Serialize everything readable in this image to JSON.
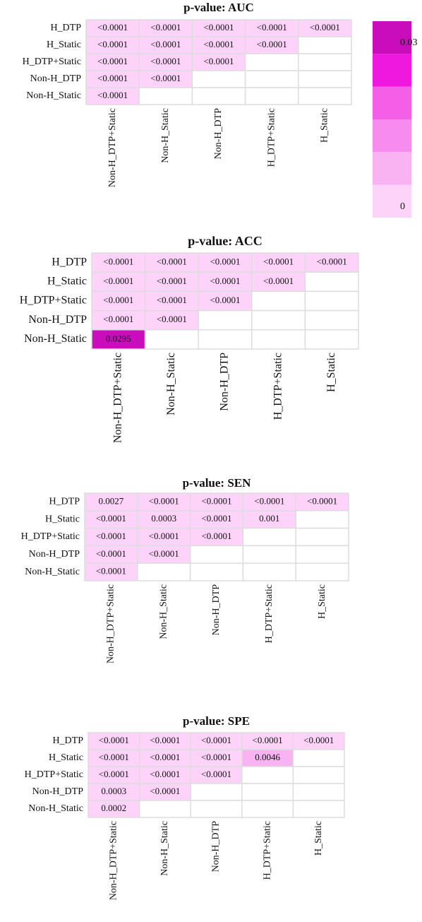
{
  "chart_data": [
    {
      "type": "heatmap",
      "title": "p-value: AUC",
      "rows": [
        "H_DTP",
        "H_Static",
        "H_DTP+Static",
        "Non-H_DTP",
        "Non-H_Static"
      ],
      "columns": [
        "Non-H_DTP+Static",
        "Non-H_Static",
        "Non-H_DTP",
        "H_DTP+Static",
        "H_Static"
      ],
      "values": [
        [
          0.0001,
          0.0001,
          0.0001,
          0.0001,
          0.0001
        ],
        [
          0.0001,
          0.0001,
          0.0001,
          0.0001,
          null
        ],
        [
          0.0001,
          0.0001,
          0.0001,
          null,
          null
        ],
        [
          0.0001,
          0.0001,
          null,
          null,
          null
        ],
        [
          0.0001,
          null,
          null,
          null,
          null
        ]
      ],
      "value_labels": [
        [
          "<0.0001",
          "<0.0001",
          "<0.0001",
          "<0.0001",
          "<0.0001"
        ],
        [
          "<0.0001",
          "<0.0001",
          "<0.0001",
          "<0.0001",
          null
        ],
        [
          "<0.0001",
          "<0.0001",
          "<0.0001",
          null,
          null
        ],
        [
          "<0.0001",
          "<0.0001",
          null,
          null,
          null
        ],
        [
          "<0.0001",
          null,
          null,
          null,
          null
        ]
      ],
      "colorbar": {
        "ylim": [
          -0.002,
          0.034
        ],
        "yticks": [
          0,
          0.03
        ],
        "colors": [
          "#fdd3fa",
          "#f9b3f3",
          "#f78bee",
          "#f55fe8",
          "#ee18de",
          "#c90dbd"
        ]
      }
    },
    {
      "type": "heatmap",
      "title": "p-value: ACC",
      "rows": [
        "H_DTP",
        "H_Static",
        "H_DTP+Static",
        "Non-H_DTP",
        "Non-H_Static"
      ],
      "columns": [
        "Non-H_DTP+Static",
        "Non-H_Static",
        "Non-H_DTP",
        "H_DTP+Static",
        "H_Static"
      ],
      "values": [
        [
          0.0001,
          0.0001,
          0.0001,
          0.0001,
          0.0001
        ],
        [
          0.0001,
          0.0001,
          0.0001,
          0.0001,
          null
        ],
        [
          0.0001,
          0.0001,
          0.0001,
          null,
          null
        ],
        [
          0.0001,
          0.0001,
          null,
          null,
          null
        ],
        [
          0.0295,
          null,
          null,
          null,
          null
        ]
      ],
      "value_labels": [
        [
          "<0.0001",
          "<0.0001",
          "<0.0001",
          "<0.0001",
          "<0.0001"
        ],
        [
          "<0.0001",
          "<0.0001",
          "<0.0001",
          "<0.0001",
          null
        ],
        [
          "<0.0001",
          "<0.0001",
          "<0.0001",
          null,
          null
        ],
        [
          "<0.0001",
          "<0.0001",
          null,
          null,
          null
        ],
        [
          "0.0295",
          null,
          null,
          null,
          null
        ]
      ]
    },
    {
      "type": "heatmap",
      "title": "p-value: SEN",
      "rows": [
        "H_DTP",
        "H_Static",
        "H_DTP+Static",
        "Non-H_DTP",
        "Non-H_Static"
      ],
      "columns": [
        "Non-H_DTP+Static",
        "Non-H_Static",
        "Non-H_DTP",
        "H_DTP+Static",
        "H_Static"
      ],
      "values": [
        [
          0.0027,
          0.0001,
          0.0001,
          0.0001,
          0.0001
        ],
        [
          0.0001,
          0.0003,
          0.0001,
          0.001,
          null
        ],
        [
          0.0001,
          0.0001,
          0.0001,
          null,
          null
        ],
        [
          0.0001,
          0.0001,
          null,
          null,
          null
        ],
        [
          0.0001,
          null,
          null,
          null,
          null
        ]
      ],
      "value_labels": [
        [
          "0.0027",
          "<0.0001",
          "<0.0001",
          "<0.0001",
          "<0.0001"
        ],
        [
          "<0.0001",
          "0.0003",
          "<0.0001",
          "0.001",
          null
        ],
        [
          "<0.0001",
          "<0.0001",
          "<0.0001",
          null,
          null
        ],
        [
          "<0.0001",
          "<0.0001",
          null,
          null,
          null
        ],
        [
          "<0.0001",
          null,
          null,
          null,
          null
        ]
      ]
    },
    {
      "type": "heatmap",
      "title": "p-value: SPE",
      "rows": [
        "H_DTP",
        "H_Static",
        "H_DTP+Static",
        "Non-H_DTP",
        "Non-H_Static"
      ],
      "columns": [
        "Non-H_DTP+Static",
        "Non-H_Static",
        "Non-H_DTP",
        "H_DTP+Static",
        "H_Static"
      ],
      "values": [
        [
          0.0001,
          0.0001,
          0.0001,
          0.0001,
          0.0001
        ],
        [
          0.0001,
          0.0001,
          0.0001,
          0.0046,
          null
        ],
        [
          0.0001,
          0.0001,
          0.0001,
          null,
          null
        ],
        [
          0.0003,
          0.0001,
          null,
          null,
          null
        ],
        [
          0.0002,
          null,
          null,
          null,
          null
        ]
      ],
      "value_labels": [
        [
          "<0.0001",
          "<0.0001",
          "<0.0001",
          "<0.0001",
          "<0.0001"
        ],
        [
          "<0.0001",
          "<0.0001",
          "<0.0001",
          "0.0046",
          null
        ],
        [
          "<0.0001",
          "<0.0001",
          "<0.0001",
          null,
          null
        ],
        [
          "0.0003",
          "<0.0001",
          null,
          null,
          null
        ],
        [
          "0.0002",
          null,
          null,
          null,
          null
        ]
      ]
    }
  ]
}
